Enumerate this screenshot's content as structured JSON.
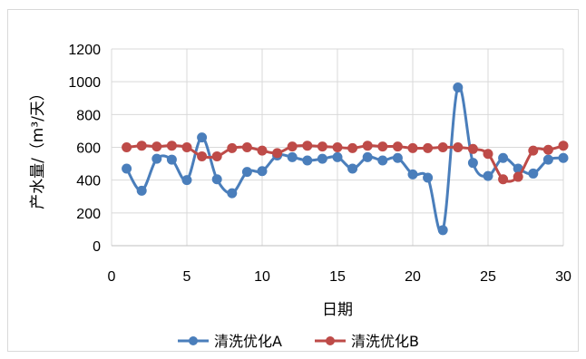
{
  "chart_data": {
    "type": "line",
    "xlabel": "日期",
    "ylabel": "产水量/（m³/天）",
    "xlim": [
      0,
      30
    ],
    "ylim": [
      0,
      1200
    ],
    "xticks": [
      0,
      5,
      10,
      15,
      20,
      25,
      30
    ],
    "yticks": [
      0,
      200,
      400,
      600,
      800,
      1000,
      1200
    ],
    "grid": "both",
    "legend_position": "bottom",
    "x": [
      1,
      2,
      3,
      4,
      5,
      6,
      7,
      8,
      9,
      10,
      11,
      12,
      13,
      14,
      15,
      16,
      17,
      18,
      19,
      20,
      21,
      22,
      23,
      24,
      25,
      26,
      27,
      28,
      29,
      30
    ],
    "series": [
      {
        "name": "清洗优化A",
        "color": "#4a7ebb",
        "values": [
          470,
          335,
          530,
          525,
          400,
          660,
          405,
          320,
          450,
          455,
          550,
          540,
          520,
          530,
          540,
          470,
          540,
          520,
          535,
          435,
          415,
          95,
          965,
          505,
          425,
          535,
          470,
          440,
          525,
          535
        ]
      },
      {
        "name": "清洗优化B",
        "color": "#be4b48",
        "values": [
          600,
          610,
          605,
          610,
          600,
          545,
          545,
          595,
          600,
          580,
          565,
          605,
          610,
          605,
          600,
          595,
          610,
          605,
          605,
          595,
          595,
          600,
          600,
          590,
          560,
          405,
          420,
          580,
          585,
          610
        ]
      }
    ]
  }
}
